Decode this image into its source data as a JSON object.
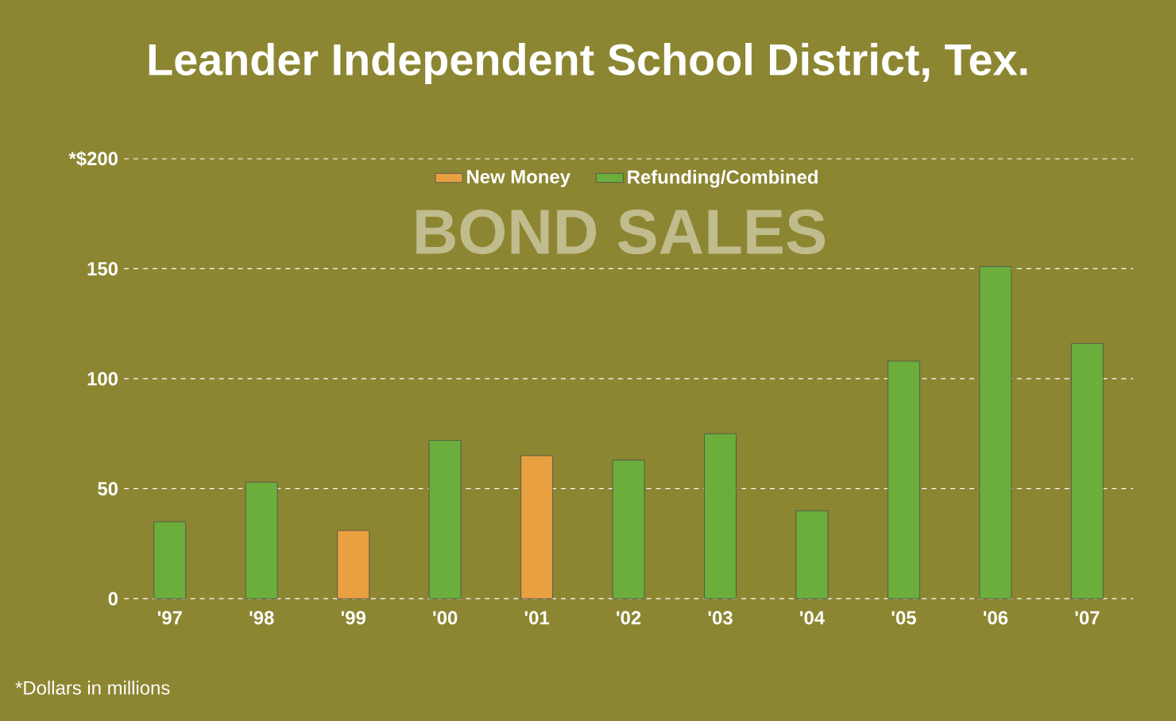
{
  "chart_data": {
    "type": "bar",
    "title": "Leander Independent School District, Tex.",
    "subtitle": "BOND SALES",
    "categories": [
      "'97",
      "'98",
      "'99",
      "'00",
      "'01",
      "'02",
      "'03",
      "'04",
      "'05",
      "'06",
      "'07"
    ],
    "series": [
      {
        "name": "New Money",
        "color": "#e8a040",
        "values": [
          null,
          null,
          31,
          null,
          65,
          null,
          null,
          null,
          null,
          null,
          null
        ]
      },
      {
        "name": "Refunding/Combined",
        "color": "#6cae3c",
        "values": [
          35,
          53,
          null,
          72,
          null,
          63,
          75,
          40,
          108,
          151,
          116
        ]
      }
    ],
    "ylim": [
      0,
      200
    ],
    "yticks": [
      0,
      50,
      100,
      150,
      {
        "value": 200,
        "label": "*$200"
      }
    ],
    "grid": "y",
    "legend": "top",
    "annotations": [
      "*Dollars in millions"
    ]
  }
}
